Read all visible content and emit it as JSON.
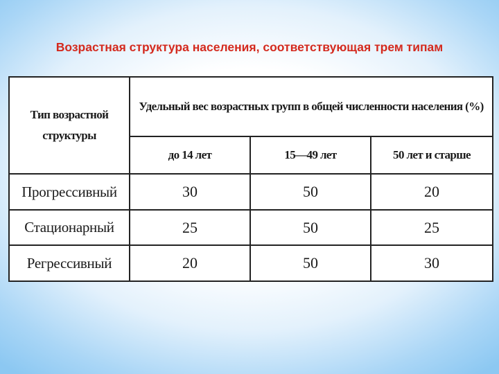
{
  "title": "Возрастная структура населения, соответствующая трем типам",
  "table": {
    "type_header": "Тип возрастной структуры",
    "group_header": "Удельный вес возрастных групп в общей численности населения (%)",
    "columns": [
      "до 14 лет",
      "15—49 лет",
      "50 лет и старше"
    ],
    "rows": [
      {
        "label": "Прогрессивный",
        "values": [
          "30",
          "50",
          "20"
        ]
      },
      {
        "label": "Стационарный",
        "values": [
          "25",
          "50",
          "25"
        ]
      },
      {
        "label": "Регрессивный",
        "values": [
          "20",
          "50",
          "30"
        ]
      }
    ]
  }
}
